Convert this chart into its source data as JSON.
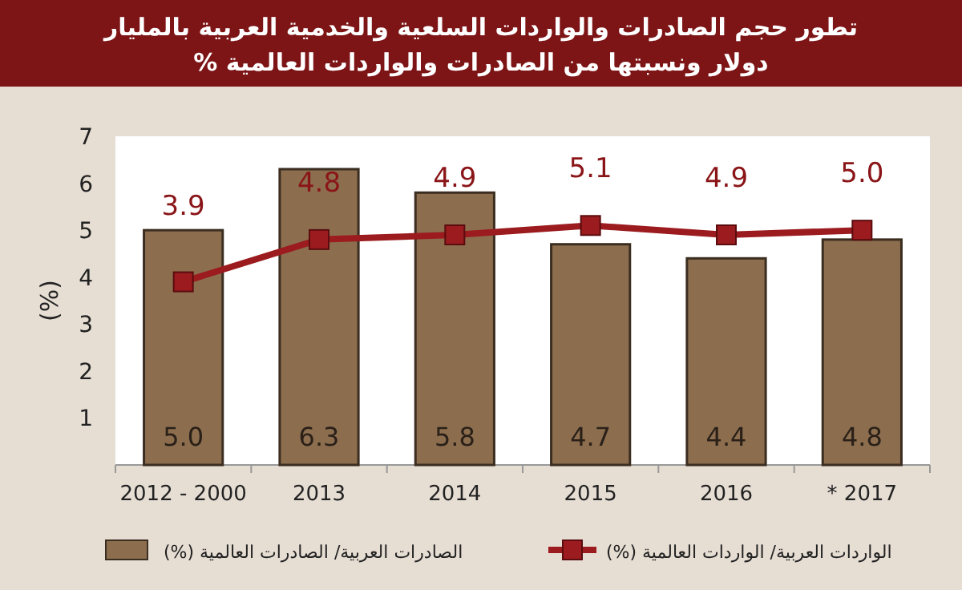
{
  "chart_data": {
    "type": "bar",
    "title": "تطور حجم الصادرات والواردات السلعية والخدمية العربية بالمليار دولار ونسبتها من الصادرات والواردات  العالمية %",
    "ylabel": "(%)",
    "categories": [
      "2012 - 2000",
      "2013",
      "2014",
      "2015",
      "2016",
      "* 2017"
    ],
    "series": [
      {
        "name": "الصادرات العربية/ الصادرات العالمية (%)",
        "color": "#8c6e4f",
        "values": [
          5.0,
          6.3,
          5.8,
          4.7,
          4.4,
          4.8
        ],
        "value_labels": [
          "5.0",
          "6.3",
          "5.8",
          "4.7",
          "4.4",
          "4.8"
        ]
      },
      {
        "name": "الواردات العربية/ الواردات العالمية (%)",
        "type": "line",
        "color": "#9b1b1e",
        "values": [
          3.9,
          4.8,
          4.9,
          5.1,
          4.9,
          5.0
        ],
        "value_labels": [
          "3.9",
          "4.8",
          "4.9",
          "5.1",
          "4.9",
          "5.0"
        ]
      }
    ],
    "ylim": [
      0,
      7
    ],
    "yticks": [
      1,
      2,
      3,
      4,
      5,
      6,
      7
    ],
    "legend": "bottom",
    "marker": "square",
    "line_style": "solid"
  }
}
